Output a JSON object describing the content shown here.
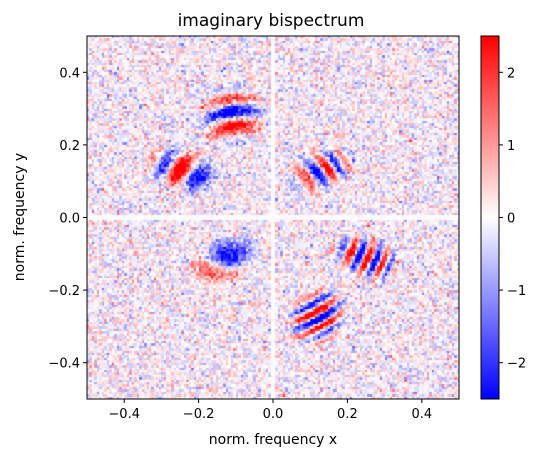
{
  "chart_data": {
    "type": "heatmap",
    "title": "imaginary bispectrum",
    "xlabel": "norm. frequency x",
    "ylabel": "norm. frequency y",
    "xlim": [
      -0.5,
      0.5
    ],
    "ylim": [
      -0.5,
      0.5
    ],
    "xticks": [
      -0.4,
      -0.2,
      0.0,
      0.2,
      0.4
    ],
    "xtick_labels": [
      "−0.4",
      "−0.2",
      "0.0",
      "0.2",
      "0.4"
    ],
    "yticks": [
      0.4,
      0.2,
      0.0,
      -0.2,
      -0.4
    ],
    "ytick_labels": [
      "0.4",
      "0.2",
      "0.0",
      "−0.2",
      "−0.4"
    ],
    "grid": false,
    "colormap": "bwr",
    "colormap_stops": [
      "#0000ff",
      "#ffffff",
      "#ff0000"
    ],
    "color_range": [
      -2.5,
      2.5
    ],
    "colorbar_ticks": [
      2,
      1,
      0,
      -1,
      -2
    ],
    "colorbar_tick_labels": [
      "2",
      "1",
      "0",
      "−1",
      "−2"
    ],
    "grid_resolution": 150,
    "noise_amplitude": 0.75,
    "lobes": [
      {
        "cx": -0.11,
        "cy": 0.28,
        "rx": 0.07,
        "ry": 0.075,
        "angle_deg": -45,
        "amplitude": 2.5,
        "fringe_freq": 180
      },
      {
        "cx": -0.24,
        "cy": 0.13,
        "rx": 0.085,
        "ry": 0.05,
        "angle_deg": -20,
        "amplitude": 2.5,
        "fringe_freq": 180
      },
      {
        "cx": 0.13,
        "cy": 0.13,
        "rx": 0.08,
        "ry": 0.05,
        "angle_deg": 20,
        "amplitude": 2.2,
        "fringe_freq": 180
      },
      {
        "cx": -0.13,
        "cy": -0.12,
        "rx": 0.08,
        "ry": 0.05,
        "angle_deg": 20,
        "amplitude": 2.2,
        "fringe_freq": 180
      },
      {
        "cx": 0.25,
        "cy": -0.11,
        "rx": 0.085,
        "ry": 0.05,
        "angle_deg": -20,
        "amplitude": 2.5,
        "fringe_freq": 180
      },
      {
        "cx": 0.12,
        "cy": -0.27,
        "rx": 0.06,
        "ry": 0.075,
        "angle_deg": -45,
        "amplitude": 2.5,
        "fringe_freq": 180
      }
    ]
  }
}
